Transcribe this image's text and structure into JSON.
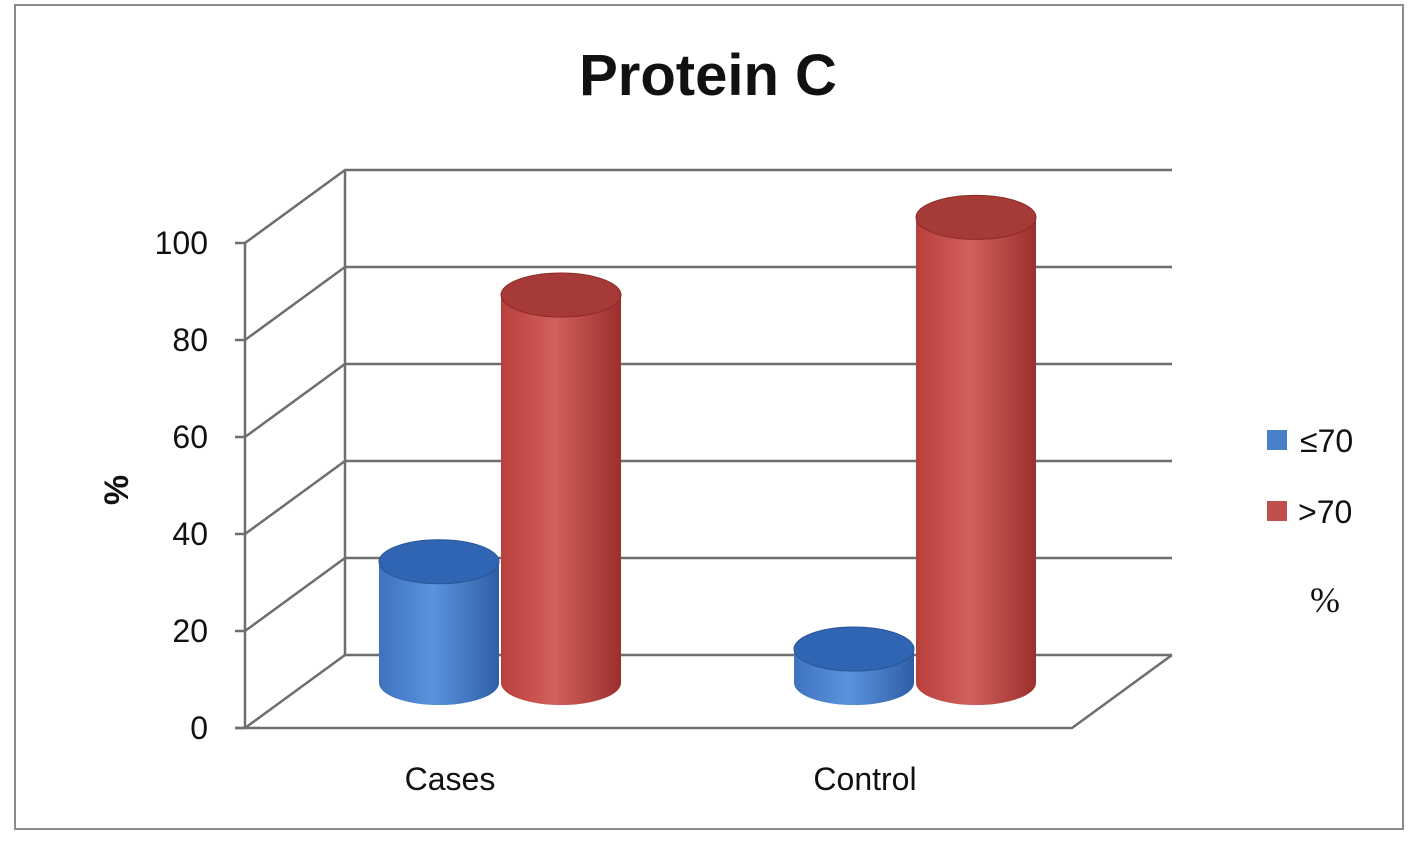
{
  "chart_data": {
    "type": "bar",
    "style": "3d-cylinder",
    "title": "Protein C",
    "ylabel": "%",
    "xlabel": "",
    "categories": [
      "Cases",
      "Control"
    ],
    "series": [
      {
        "name": "≤70",
        "values": [
          25,
          7
        ],
        "color": "#4a7fc9"
      },
      {
        "name": ">70",
        "values": [
          80,
          96
        ],
        "color": "#c0504d"
      }
    ],
    "ylim": [
      0,
      100
    ],
    "yticks": [
      "0",
      "20",
      "40",
      "60",
      "80",
      "100"
    ],
    "grid": true,
    "legend": {
      "position": "right",
      "note": "%"
    }
  }
}
